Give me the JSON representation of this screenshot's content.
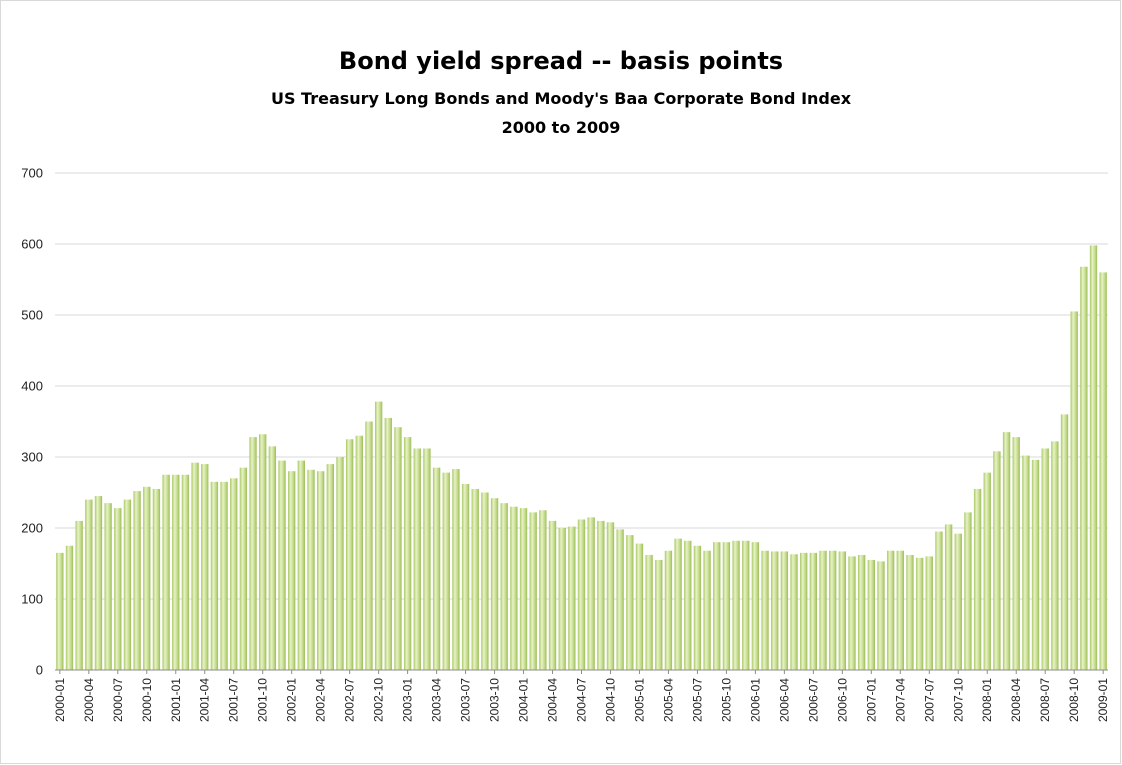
{
  "chart_data": {
    "type": "bar",
    "title": "Bond yield spread -- basis points",
    "subtitle": "US Treasury Long Bonds and Moody's Baa Corporate Bond Index",
    "subtitle2": "2000 to 2009",
    "xlabel": "",
    "ylabel": "",
    "ylim": [
      0,
      700
    ],
    "yticks": [
      0,
      100,
      200,
      300,
      400,
      500,
      600,
      700
    ],
    "grid": true,
    "legend": "none",
    "bar_color": "#c4dc8c",
    "bar_highlight": "#e8f2c6",
    "bar_shadow": "#9dbd5a",
    "tick_labels": [
      "2000-01",
      "2000-04",
      "2000-07",
      "2000-10",
      "2001-01",
      "2001-04",
      "2001-07",
      "2001-10",
      "2002-01",
      "2002-04",
      "2002-07",
      "2002-10",
      "2003-01",
      "2003-04",
      "2003-07",
      "2003-10",
      "2004-01",
      "2004-04",
      "2004-07",
      "2004-10",
      "2005-01",
      "2005-04",
      "2005-07",
      "2005-10",
      "2006-01",
      "2006-04",
      "2006-07",
      "2006-10",
      "2007-01",
      "2007-04",
      "2007-07",
      "2007-10",
      "2008-01",
      "2008-04",
      "2008-07",
      "2008-10",
      "2009-01"
    ],
    "categories": [
      "2000-01",
      "2000-02",
      "2000-03",
      "2000-04",
      "2000-05",
      "2000-06",
      "2000-07",
      "2000-08",
      "2000-09",
      "2000-10",
      "2000-11",
      "2000-12",
      "2001-01",
      "2001-02",
      "2001-03",
      "2001-04",
      "2001-05",
      "2001-06",
      "2001-07",
      "2001-08",
      "2001-09",
      "2001-10",
      "2001-11",
      "2001-12",
      "2002-01",
      "2002-02",
      "2002-03",
      "2002-04",
      "2002-05",
      "2002-06",
      "2002-07",
      "2002-08",
      "2002-09",
      "2002-10",
      "2002-11",
      "2002-12",
      "2003-01",
      "2003-02",
      "2003-03",
      "2003-04",
      "2003-05",
      "2003-06",
      "2003-07",
      "2003-08",
      "2003-09",
      "2003-10",
      "2003-11",
      "2003-12",
      "2004-01",
      "2004-02",
      "2004-03",
      "2004-04",
      "2004-05",
      "2004-06",
      "2004-07",
      "2004-08",
      "2004-09",
      "2004-10",
      "2004-11",
      "2004-12",
      "2005-01",
      "2005-02",
      "2005-03",
      "2005-04",
      "2005-05",
      "2005-06",
      "2005-07",
      "2005-08",
      "2005-09",
      "2005-10",
      "2005-11",
      "2005-12",
      "2006-01",
      "2006-02",
      "2006-03",
      "2006-04",
      "2006-05",
      "2006-06",
      "2006-07",
      "2006-08",
      "2006-09",
      "2006-10",
      "2006-11",
      "2006-12",
      "2007-01",
      "2007-02",
      "2007-03",
      "2007-04",
      "2007-05",
      "2007-06",
      "2007-07",
      "2007-08",
      "2007-09",
      "2007-10",
      "2007-11",
      "2007-12",
      "2008-01",
      "2008-02",
      "2008-03",
      "2008-04",
      "2008-05",
      "2008-06",
      "2008-07",
      "2008-08",
      "2008-09",
      "2008-10",
      "2008-11",
      "2008-12",
      "2009-01"
    ],
    "values": [
      165,
      175,
      210,
      240,
      245,
      235,
      228,
      240,
      252,
      258,
      255,
      275,
      275,
      275,
      292,
      290,
      265,
      265,
      270,
      285,
      328,
      332,
      315,
      295,
      280,
      295,
      282,
      280,
      290,
      300,
      325,
      330,
      350,
      378,
      355,
      342,
      328,
      312,
      312,
      285,
      278,
      283,
      262,
      255,
      250,
      242,
      235,
      230,
      228,
      222,
      225,
      210,
      200,
      202,
      212,
      215,
      210,
      208,
      198,
      190,
      178,
      162,
      155,
      168,
      185,
      182,
      175,
      168,
      180,
      180,
      182,
      182,
      180,
      168,
      167,
      167,
      163,
      165,
      165,
      168,
      168,
      167,
      160,
      162,
      155,
      153,
      168,
      168,
      162,
      158,
      160,
      195,
      205,
      192,
      222,
      255,
      278,
      308,
      335,
      328,
      302,
      296,
      312,
      322,
      360,
      505,
      568,
      598,
      560
    ]
  }
}
